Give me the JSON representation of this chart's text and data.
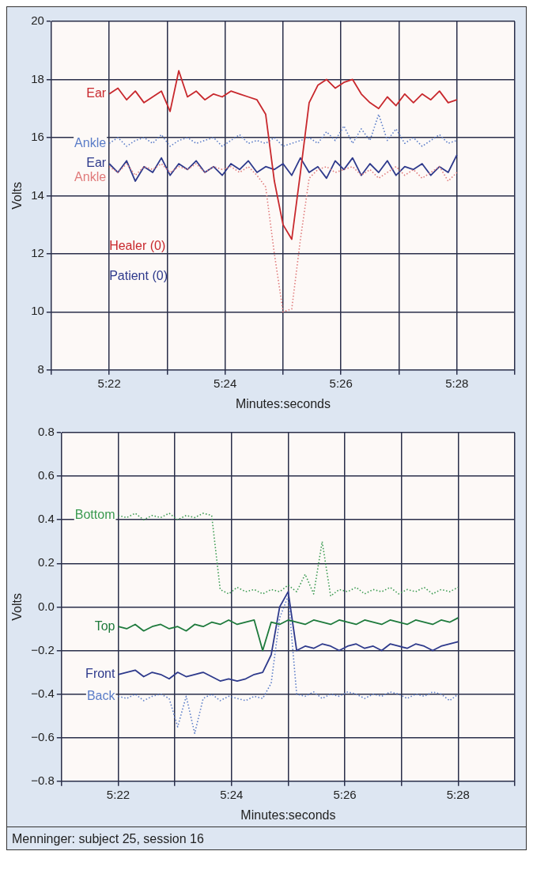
{
  "chart_data": [
    {
      "type": "line",
      "xlabel": "Minutes:seconds",
      "ylabel": "Volts",
      "grid": true,
      "legend": false,
      "marker": "none",
      "x": [
        322.0,
        322.15,
        322.3,
        322.45,
        322.6,
        322.75,
        322.9,
        323.05,
        323.2,
        323.35,
        323.5,
        323.65,
        323.8,
        323.95,
        324.1,
        324.25,
        324.4,
        324.55,
        324.7,
        324.85,
        325.0,
        325.15,
        325.3,
        325.45,
        325.6,
        325.75,
        325.9,
        326.05,
        326.2,
        326.35,
        326.5,
        326.65,
        326.8,
        326.95,
        327.1,
        327.25,
        327.4,
        327.55,
        327.7,
        327.85,
        328.0
      ],
      "xlim": [
        321,
        329
      ],
      "xticks": [
        {
          "value": 321,
          "label": null
        },
        {
          "value": 322,
          "label": "5:22"
        },
        {
          "value": 323,
          "label": null
        },
        {
          "value": 324,
          "label": "5:24"
        },
        {
          "value": 325,
          "label": null
        },
        {
          "value": 326,
          "label": "5:26"
        },
        {
          "value": 327,
          "label": null
        },
        {
          "value": 328,
          "label": "5:28"
        },
        {
          "value": 329,
          "label": null
        }
      ],
      "ylim": [
        8,
        20
      ],
      "yticks": [
        8,
        10,
        12,
        14,
        16,
        18,
        20
      ],
      "annotations": [
        "Healer (0)",
        "Patient (0)"
      ],
      "series": [
        {
          "name": "Ear",
          "color": "#c8282d",
          "line_style": "solid",
          "values": [
            17.5,
            17.7,
            17.3,
            17.6,
            17.2,
            17.4,
            17.6,
            16.9,
            18.3,
            17.4,
            17.6,
            17.3,
            17.5,
            17.4,
            17.6,
            17.5,
            17.4,
            17.3,
            16.8,
            14.5,
            13.0,
            12.5,
            14.8,
            17.2,
            17.8,
            18.0,
            17.7,
            17.9,
            18.0,
            17.5,
            17.2,
            17.0,
            17.4,
            17.1,
            17.5,
            17.2,
            17.5,
            17.3,
            17.6,
            17.2,
            17.3
          ]
        },
        {
          "name": "Ankle",
          "color": "#e07a7a",
          "line_style": "dotted",
          "values": [
            15.0,
            14.8,
            15.1,
            14.7,
            15.0,
            14.9,
            15.1,
            14.8,
            15.0,
            14.9,
            15.1,
            14.8,
            15.0,
            14.9,
            15.0,
            14.8,
            15.0,
            14.7,
            14.3,
            12.0,
            10.0,
            10.1,
            12.5,
            14.6,
            14.9,
            15.0,
            14.8,
            14.9,
            15.0,
            14.7,
            14.9,
            14.6,
            14.8,
            15.0,
            14.7,
            14.9,
            14.6,
            14.8,
            15.0,
            14.5,
            14.8
          ]
        },
        {
          "name": "Ear",
          "color": "#2e3a8c",
          "line_style": "solid",
          "values": [
            15.1,
            14.8,
            15.2,
            14.5,
            15.0,
            14.8,
            15.3,
            14.7,
            15.1,
            14.9,
            15.2,
            14.8,
            15.0,
            14.7,
            15.1,
            14.9,
            15.2,
            14.8,
            15.0,
            14.9,
            15.1,
            14.7,
            15.3,
            14.8,
            15.0,
            14.6,
            15.2,
            14.9,
            15.3,
            14.7,
            15.1,
            14.8,
            15.2,
            14.7,
            15.0,
            14.9,
            15.1,
            14.7,
            15.0,
            14.8,
            15.4
          ]
        },
        {
          "name": "Ankle",
          "color": "#5a7cc8",
          "line_style": "dotted",
          "values": [
            15.8,
            16.0,
            15.7,
            15.9,
            16.0,
            15.8,
            16.1,
            15.7,
            15.9,
            16.0,
            15.8,
            15.9,
            16.0,
            15.7,
            15.9,
            16.1,
            15.8,
            15.9,
            15.8,
            16.0,
            15.7,
            15.8,
            15.9,
            16.0,
            15.8,
            16.2,
            15.9,
            16.4,
            15.8,
            16.3,
            15.9,
            16.8,
            15.9,
            16.3,
            15.8,
            16.0,
            15.7,
            15.9,
            16.1,
            15.8,
            15.9
          ]
        }
      ]
    },
    {
      "type": "line",
      "xlabel": "Minutes:seconds",
      "ylabel": "Volts",
      "grid": true,
      "legend": false,
      "marker": "none",
      "x": [
        322.0,
        322.15,
        322.3,
        322.45,
        322.6,
        322.75,
        322.9,
        323.05,
        323.2,
        323.35,
        323.5,
        323.65,
        323.8,
        323.95,
        324.1,
        324.25,
        324.4,
        324.55,
        324.7,
        324.85,
        325.0,
        325.15,
        325.3,
        325.45,
        325.6,
        325.75,
        325.9,
        326.05,
        326.2,
        326.35,
        326.5,
        326.65,
        326.8,
        326.95,
        327.1,
        327.25,
        327.4,
        327.55,
        327.7,
        327.85,
        328.0
      ],
      "xlim": [
        321,
        329
      ],
      "xticks": [
        {
          "value": 321,
          "label": null
        },
        {
          "value": 322,
          "label": "5:22"
        },
        {
          "value": 323,
          "label": null
        },
        {
          "value": 324,
          "label": "5:24"
        },
        {
          "value": 325,
          "label": null
        },
        {
          "value": 326,
          "label": "5:26"
        },
        {
          "value": 327,
          "label": null
        },
        {
          "value": 328,
          "label": "5:28"
        },
        {
          "value": 329,
          "label": null
        }
      ],
      "ylim": [
        -0.8,
        0.8
      ],
      "yticks": [
        {
          "value": -0.8,
          "label": "−0.8"
        },
        {
          "value": -0.6,
          "label": "−0.6"
        },
        {
          "value": -0.4,
          "label": "−0.4"
        },
        {
          "value": -0.2,
          "label": "−0.2"
        },
        {
          "value": 0,
          "label": "0.0"
        },
        {
          "value": 0.2,
          "label": "0.2"
        },
        {
          "value": 0.4,
          "label": "0.4"
        },
        {
          "value": 0.6,
          "label": "0.6"
        },
        {
          "value": 0.8,
          "label": "0.8"
        }
      ],
      "annotations": [
        "Menninger: subject 25, session 16"
      ],
      "series": [
        {
          "name": "Bottom",
          "color": "#3a9a50",
          "line_style": "dotted",
          "values": [
            0.42,
            0.41,
            0.43,
            0.4,
            0.42,
            0.41,
            0.43,
            0.4,
            0.42,
            0.41,
            0.43,
            0.42,
            0.08,
            0.06,
            0.09,
            0.07,
            0.08,
            0.06,
            0.08,
            0.07,
            0.1,
            0.07,
            0.15,
            0.06,
            0.3,
            0.05,
            0.08,
            0.07,
            0.09,
            0.06,
            0.08,
            0.07,
            0.09,
            0.06,
            0.08,
            0.07,
            0.09,
            0.06,
            0.08,
            0.07,
            0.09
          ]
        },
        {
          "name": "Top",
          "color": "#1e7a3c",
          "line_style": "solid",
          "values": [
            -0.09,
            -0.1,
            -0.08,
            -0.11,
            -0.09,
            -0.08,
            -0.1,
            -0.09,
            -0.11,
            -0.08,
            -0.09,
            -0.07,
            -0.08,
            -0.06,
            -0.08,
            -0.07,
            -0.06,
            -0.2,
            -0.07,
            -0.08,
            -0.06,
            -0.07,
            -0.08,
            -0.06,
            -0.07,
            -0.08,
            -0.06,
            -0.07,
            -0.08,
            -0.06,
            -0.07,
            -0.08,
            -0.06,
            -0.07,
            -0.08,
            -0.06,
            -0.07,
            -0.08,
            -0.06,
            -0.07,
            -0.05
          ]
        },
        {
          "name": "Front",
          "color": "#2e3a8c",
          "line_style": "solid",
          "values": [
            -0.31,
            -0.3,
            -0.29,
            -0.32,
            -0.3,
            -0.31,
            -0.33,
            -0.3,
            -0.32,
            -0.31,
            -0.3,
            -0.32,
            -0.34,
            -0.33,
            -0.34,
            -0.33,
            -0.31,
            -0.3,
            -0.22,
            0.0,
            0.07,
            -0.2,
            -0.18,
            -0.19,
            -0.17,
            -0.18,
            -0.2,
            -0.18,
            -0.17,
            -0.19,
            -0.18,
            -0.2,
            -0.17,
            -0.18,
            -0.19,
            -0.17,
            -0.18,
            -0.2,
            -0.18,
            -0.17,
            -0.16
          ]
        },
        {
          "name": "Back",
          "color": "#5a7cc8",
          "line_style": "dotted",
          "values": [
            -0.41,
            -0.42,
            -0.4,
            -0.43,
            -0.41,
            -0.4,
            -0.42,
            -0.55,
            -0.41,
            -0.58,
            -0.42,
            -0.4,
            -0.43,
            -0.41,
            -0.42,
            -0.43,
            -0.41,
            -0.42,
            -0.35,
            -0.05,
            0.05,
            -0.4,
            -0.41,
            -0.39,
            -0.42,
            -0.4,
            -0.41,
            -0.39,
            -0.4,
            -0.42,
            -0.4,
            -0.41,
            -0.39,
            -0.4,
            -0.42,
            -0.4,
            -0.41,
            -0.39,
            -0.4,
            -0.43,
            -0.4
          ]
        }
      ]
    }
  ]
}
